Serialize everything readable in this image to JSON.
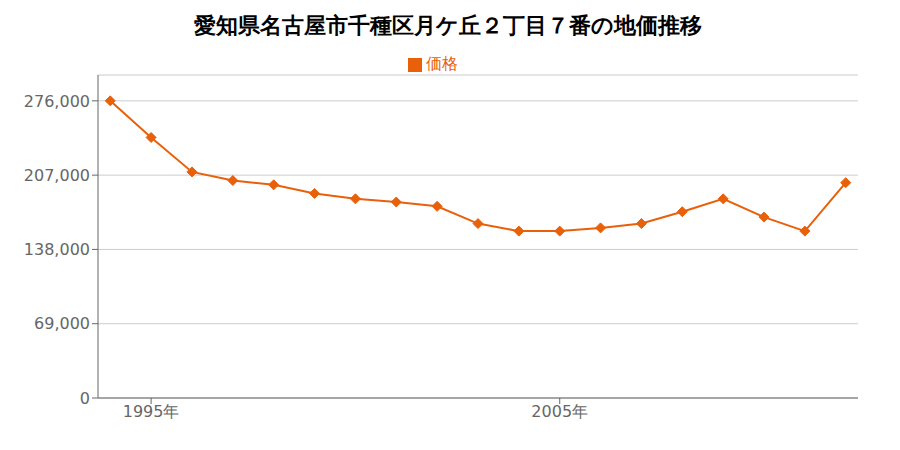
{
  "chart_data": {
    "type": "line",
    "title": "愛知県名古屋市千種区月ケ丘２丁目７番の地価推移",
    "x": [
      1994,
      1995,
      1996,
      1997,
      1998,
      1999,
      2000,
      2001,
      2002,
      2003,
      2004,
      2005,
      2006,
      2007,
      2008,
      2009,
      2010,
      2011,
      2012
    ],
    "series": [
      {
        "name": "価格",
        "color": "#e8600a",
        "marker": "diamond",
        "values": [
          276000,
          242000,
          210000,
          202000,
          198000,
          190000,
          185000,
          182000,
          178000,
          162000,
          155000,
          155000,
          158000,
          162000,
          173000,
          185000,
          168000,
          155000,
          200000
        ]
      }
    ],
    "xlim": [
      1993.7,
      2012.3
    ],
    "xticks": [
      {
        "value": 1995,
        "label": "1995年"
      },
      {
        "value": 2005,
        "label": "2005年"
      }
    ],
    "ylim": [
      0,
      300000
    ],
    "yticks": [
      0,
      {
        "value": 69000,
        "label": "69,000"
      },
      {
        "value": 138000,
        "label": "138,000"
      },
      {
        "value": 207000,
        "label": "207,000"
      },
      {
        "value": 276000,
        "label": "276,000"
      }
    ],
    "grid": true,
    "legend": "top"
  }
}
